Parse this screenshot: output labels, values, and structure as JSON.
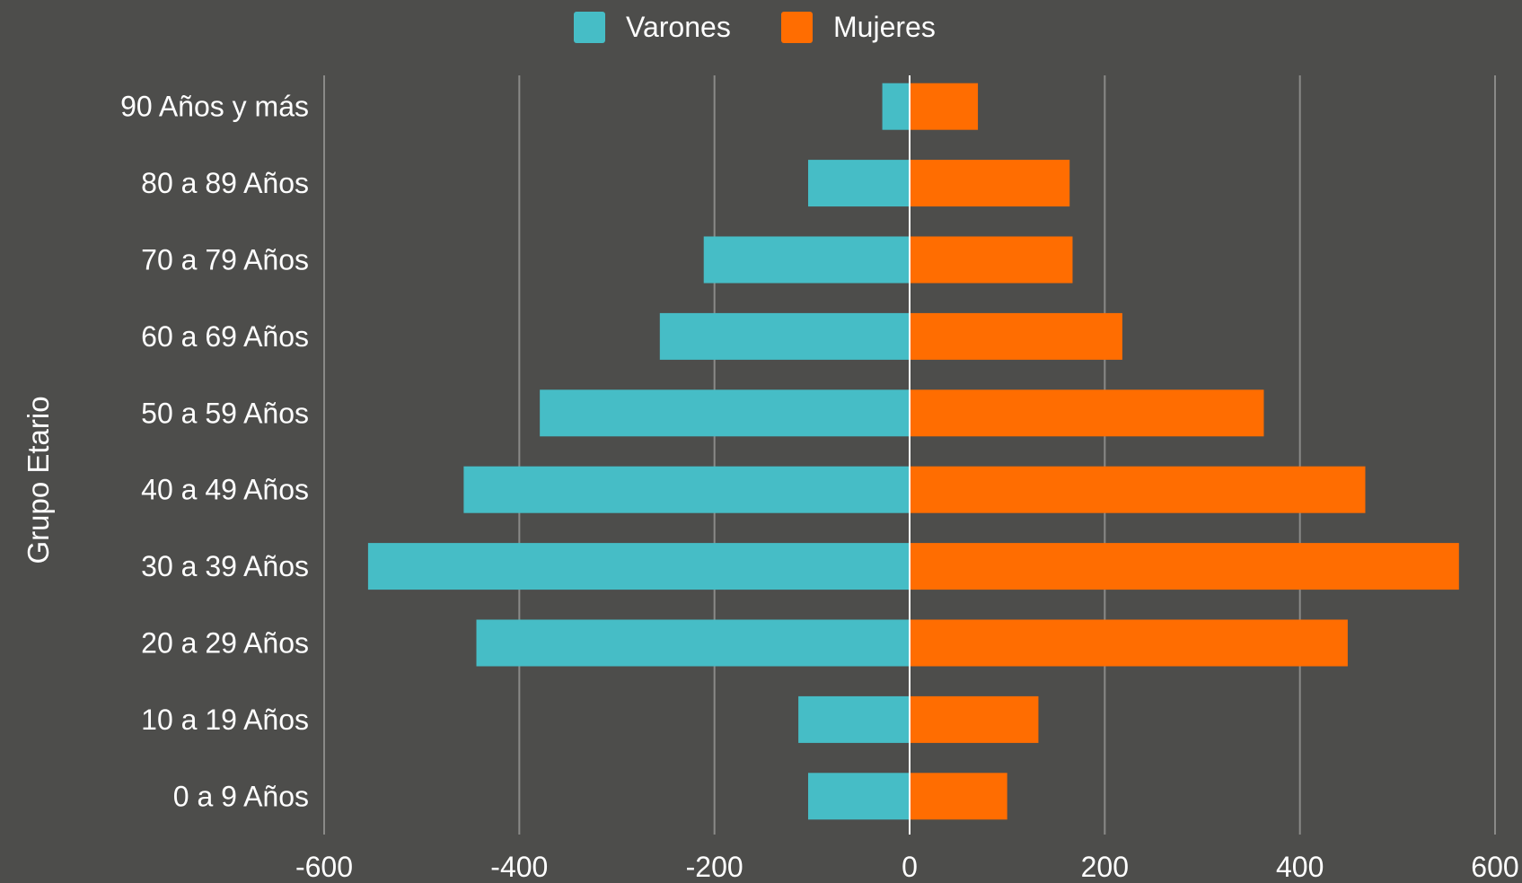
{
  "chart_data": {
    "type": "bar",
    "orientation": "horizontal",
    "stacked": true,
    "title": "",
    "xlabel": "",
    "ylabel": "Grupo Etario",
    "xlim": [
      -600,
      600
    ],
    "xticks": [
      "-600",
      "-400",
      "-200",
      "0",
      "200",
      "400",
      "600"
    ],
    "grid": true,
    "legend_position": "top",
    "categories": [
      "90 Años y más",
      "80 a 89 Años",
      "70 a 79 Años",
      "60 a 69 Años",
      "50 a 59 Años",
      "40 a 49 Años",
      "30 a 39 Años",
      "20 a 29 Años",
      "10 a 19 Años",
      "0 a 9 Años"
    ],
    "series": [
      {
        "name": "Varones",
        "color": "#46bdc6",
        "values": [
          -28,
          -104,
          -211,
          -256,
          -379,
          -457,
          -555,
          -444,
          -114,
          -104
        ]
      },
      {
        "name": "Mujeres",
        "color": "#ff6d01",
        "values": [
          70,
          164,
          167,
          218,
          363,
          467,
          563,
          449,
          132,
          100
        ]
      }
    ]
  }
}
